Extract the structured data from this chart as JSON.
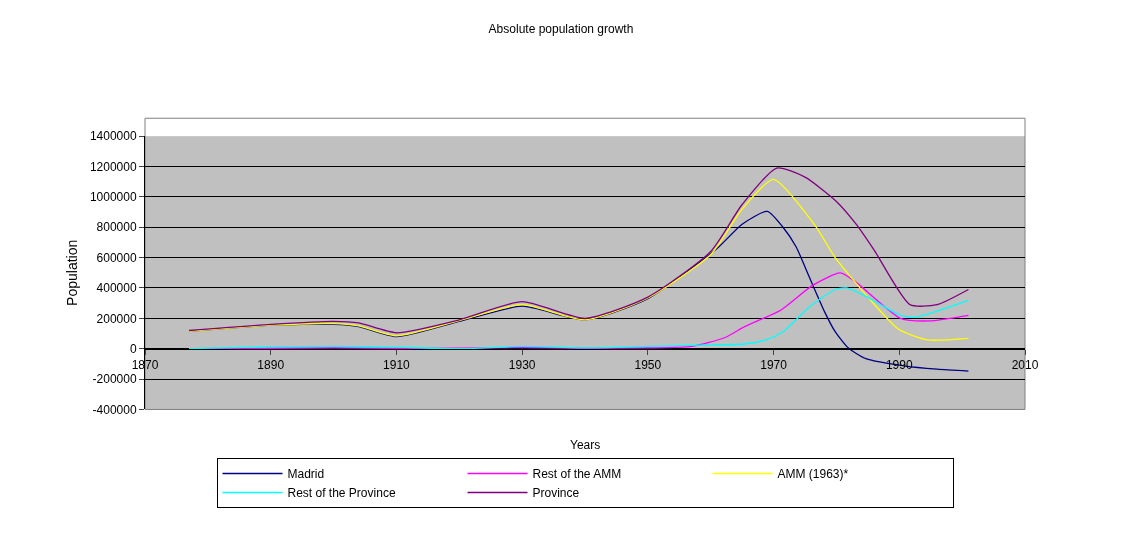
{
  "chart_data": {
    "type": "line",
    "title": "Absolute population growth",
    "xlabel": "Years",
    "ylabel": "Population",
    "xlim": [
      1870,
      2010
    ],
    "xticks": [
      1870,
      1890,
      1910,
      1930,
      1950,
      1970,
      1990,
      2010
    ],
    "ylim": [
      -400000,
      1400000
    ],
    "yticks": [
      -400000,
      -200000,
      0,
      200000,
      400000,
      600000,
      800000,
      1000000,
      1200000,
      1400000
    ],
    "grid": "y",
    "legend": "bottom",
    "marker": "none",
    "line_style": "solid",
    "series": [
      {
        "name": "Madrid",
        "color": "#000080",
        "x": [
          1877,
          1890,
          1900,
          1904,
          1910,
          1920,
          1930,
          1940,
          1950,
          1961,
          1965,
          1969,
          1971.5,
          1973.6,
          1975.7,
          1978.2,
          1979.8,
          1981.9,
          1984.7,
          1991,
          1996,
          2001
        ],
        "values": [
          115000,
          155000,
          160000,
          145000,
          80000,
          180000,
          280000,
          190000,
          330000,
          660000,
          820000,
          905000,
          800000,
          670000,
          470000,
          236000,
          112000,
          4000,
          -66000,
          -115000,
          -135000,
          -148000
        ]
      },
      {
        "name": "Rest of the AMM",
        "color": "#ff00ff",
        "x": [
          1877,
          1890,
          1900,
          1910,
          1920,
          1930,
          1940,
          1950,
          1957,
          1962.3,
          1965.4,
          1971.2,
          1976.2,
          1980.6,
          1982.9,
          1990.2,
          1994.8,
          2001
        ],
        "values": [
          0,
          3000,
          5000,
          3000,
          3000,
          8000,
          3000,
          5000,
          15000,
          74000,
          146000,
          255000,
          417000,
          499000,
          445000,
          200000,
          183000,
          220000
        ]
      },
      {
        "name": "AMM (1963)*",
        "color": "#ffff00",
        "x": [
          1877,
          1890,
          1900,
          1904,
          1910,
          1920,
          1930,
          1940,
          1950,
          1960,
          1965,
          1970,
          1976.7,
          1979.8,
          1985,
          1989.9,
          1994.5,
          2001
        ],
        "values": [
          115000,
          155000,
          165000,
          150000,
          85000,
          185000,
          290000,
          190000,
          335000,
          620000,
          920000,
          1115000,
          806000,
          600000,
          340000,
          128000,
          58000,
          68000
        ]
      },
      {
        "name": "Rest of the Province",
        "color": "#00ffff",
        "x": [
          1877,
          1890,
          1900,
          1910,
          1920,
          1930,
          1940,
          1950,
          1960,
          1965.4,
          1968.8,
          1971.5,
          1975.7,
          1979.8,
          1981.6,
          1984.7,
          1990.2,
          1992.8,
          2001
        ],
        "values": [
          0,
          12000,
          15000,
          10000,
          0,
          15000,
          5000,
          15000,
          25000,
          31000,
          58000,
          112000,
          275000,
          390000,
          400000,
          345000,
          220000,
          210000,
          318000
        ]
      },
      {
        "name": "Province",
        "color": "#800080",
        "x": [
          1877,
          1890,
          1900,
          1904,
          1910,
          1920,
          1930,
          1940,
          1950,
          1960,
          1965,
          1970.5,
          1975,
          1980,
          1983.2,
          1986,
          1991.7,
          1996,
          2001
        ],
        "values": [
          120000,
          160000,
          180000,
          170000,
          105000,
          190000,
          310000,
          200000,
          340000,
          640000,
          950000,
          1190000,
          1130000,
          970000,
          817000,
          650000,
          290000,
          290000,
          390000
        ]
      }
    ]
  }
}
